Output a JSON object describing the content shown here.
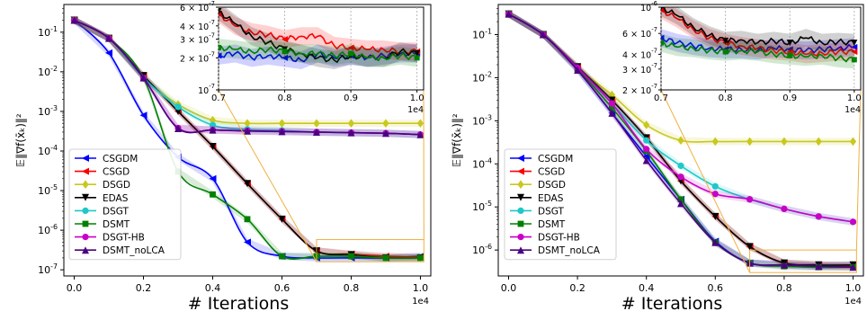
{
  "chart_data": [
    {
      "type": "line",
      "xlabel": "# Iterations",
      "ylabel": "𝔼‖∇f(x̄ₖ)‖²",
      "x_multiplier": "1e4",
      "xlim": [
        -0.03,
        1.03
      ],
      "ylim": [
        7e-08,
        0.5
      ],
      "yscale": "log",
      "x_ticks": [
        "0.0",
        "0.2",
        "0.4",
        "0.6",
        "0.8",
        "1.0"
      ],
      "y_ticks": [
        "10^{-1}",
        "10^{-2}",
        "10^{-3}",
        "10^{-4}",
        "10^{-5}",
        "10^{-6}",
        "10^{-7}"
      ],
      "legend_position": "lower-left",
      "x": [
        0.0,
        0.1,
        0.2,
        0.3,
        0.4,
        0.5,
        0.6,
        0.7,
        0.8,
        0.9,
        1.0
      ],
      "series": [
        {
          "name": "CSGDM",
          "color": "#0000ff",
          "marker": "triangle-left",
          "values": [
            0.2,
            0.03,
            0.0008,
            7e-05,
            2e-05,
            5e-07,
            2.2e-07,
            2e-07,
            2e-07,
            2e-07,
            2.2e-07
          ]
        },
        {
          "name": "CSGD",
          "color": "#ff0000",
          "marker": "triangle-left",
          "values": [
            0.2,
            0.07,
            0.008,
            0.001,
            0.00013,
            1.5e-05,
            1.9e-06,
            3e-07,
            2.5e-07,
            2.2e-07,
            2.1e-07
          ]
        },
        {
          "name": "DSGD",
          "color": "#c8c81e",
          "marker": "diamond",
          "values": [
            0.2,
            0.07,
            0.007,
            0.0015,
            0.0006,
            0.0005,
            0.0005,
            0.0005,
            0.0005,
            0.0005,
            0.0005
          ]
        },
        {
          "name": "EDAS",
          "color": "#000000",
          "marker": "triangle-down",
          "values": [
            0.2,
            0.07,
            0.008,
            0.001,
            0.00013,
            1.5e-05,
            1.9e-06,
            3e-07,
            2.4e-07,
            2e-07,
            2e-07
          ]
        },
        {
          "name": "DSGT",
          "color": "#1ec8c8",
          "marker": "circle",
          "values": [
            0.2,
            0.07,
            0.007,
            0.0013,
            0.00045,
            0.00035,
            0.00033,
            0.0003,
            0.00029,
            0.00028,
            0.00026
          ]
        },
        {
          "name": "DSMT",
          "color": "#008000",
          "marker": "square",
          "values": [
            0.2,
            0.07,
            0.007,
            3e-05,
            8e-06,
            1.9e-06,
            2.2e-07,
            2.2e-07,
            2.2e-07,
            2e-07,
            2e-07
          ]
        },
        {
          "name": "DSGT-HB",
          "color": "#c800c8",
          "marker": "circle",
          "values": [
            0.2,
            0.07,
            0.007,
            0.00038,
            0.00034,
            0.00032,
            0.00031,
            0.0003,
            0.00029,
            0.00028,
            0.00026
          ]
        },
        {
          "name": "DSMT_noLCA",
          "color": "#4b0082",
          "marker": "triangle-up",
          "values": [
            0.2,
            0.07,
            0.007,
            0.00037,
            0.00034,
            0.00032,
            0.00031,
            0.0003,
            0.00029,
            0.00028,
            0.00026
          ]
        }
      ],
      "inset": {
        "xlim": [
          0.7,
          1.01
        ],
        "ylim": [
          1e-07,
          6e-07
        ],
        "x_ticks": [
          "0.7",
          "0.8",
          "0.9",
          "1.0"
        ],
        "x_multiplier": "1e4",
        "y_ticks": [
          "6 × 10^{-7}",
          "4 × 10^{-7}",
          "3 × 10^{-7}",
          "2 × 10^{-7}",
          "10^{-7}"
        ],
        "x": [
          0.7,
          0.725,
          0.75,
          0.775,
          0.8,
          0.825,
          0.85,
          0.875,
          0.9,
          0.925,
          0.95,
          0.975,
          1.0
        ],
        "series": [
          {
            "name": "CSGDM",
            "values": [
              2.1e-07,
              2.2e-07,
              2e-07,
              2.1e-07,
              2e-07,
              1.9e-07,
              2.2e-07,
              2e-07,
              2.1e-07,
              2e-07,
              2.1e-07,
              2.2e-07,
              2.2e-07
            ]
          },
          {
            "name": "CSGD",
            "values": [
              5.2e-07,
              4e-07,
              3.5e-07,
              3.3e-07,
              3e-07,
              3.2e-07,
              3.2e-07,
              2.6e-07,
              2.5e-07,
              2.4e-07,
              2.4e-07,
              2.3e-07,
              2.3e-07
            ]
          },
          {
            "name": "EDAS",
            "values": [
              5.5e-07,
              4.2e-07,
              3.2e-07,
              2.8e-07,
              2.4e-07,
              2.2e-07,
              2e-07,
              1.9e-07,
              2.1e-07,
              2e-07,
              2e-07,
              2.3e-07,
              2.2e-07
            ]
          },
          {
            "name": "DSMT",
            "values": [
              2.5e-07,
              2.4e-07,
              2.3e-07,
              2.4e-07,
              2.3e-07,
              2.2e-07,
              2.2e-07,
              2.1e-07,
              2.2e-07,
              2e-07,
              2e-07,
              2.1e-07,
              2e-07
            ]
          }
        ]
      }
    },
    {
      "type": "line",
      "xlabel": "# Iterations",
      "ylabel": "𝔼‖∇f(x̄ₖ)‖²",
      "x_multiplier": "1e4",
      "xlim": [
        -0.03,
        1.03
      ],
      "ylim": [
        2.5e-07,
        0.5
      ],
      "yscale": "log",
      "x_ticks": [
        "0.0",
        "0.2",
        "0.4",
        "0.6",
        "0.8",
        "1.0"
      ],
      "y_ticks": [
        "10^{-1}",
        "10^{-2}",
        "10^{-3}",
        "10^{-4}",
        "10^{-5}",
        "10^{-6}"
      ],
      "legend_position": "lower-left",
      "x": [
        0.0,
        0.1,
        0.2,
        0.3,
        0.4,
        0.5,
        0.6,
        0.7,
        0.8,
        0.9,
        1.0
      ],
      "series": [
        {
          "name": "CSGDM",
          "color": "#0000ff",
          "marker": "triangle-left",
          "values": [
            0.3,
            0.1,
            0.015,
            0.0015,
            0.00015,
            1.5e-05,
            1.6e-06,
            5e-07,
            4.5e-07,
            4.2e-07,
            4.5e-07
          ]
        },
        {
          "name": "CSGD",
          "color": "#ff0000",
          "marker": "triangle-left",
          "values": [
            0.3,
            0.1,
            0.018,
            0.003,
            0.0004,
            4e-05,
            6e-06,
            1.2e-06,
            5e-07,
            4.5e-07,
            4.2e-07
          ]
        },
        {
          "name": "DSGD",
          "color": "#c8c81e",
          "marker": "diamond",
          "values": [
            0.3,
            0.1,
            0.017,
            0.004,
            0.0008,
            0.00035,
            0.00033,
            0.00033,
            0.00033,
            0.00033,
            0.00033
          ]
        },
        {
          "name": "EDAS",
          "color": "#000000",
          "marker": "triangle-down",
          "values": [
            0.3,
            0.1,
            0.018,
            0.003,
            0.0004,
            4e-05,
            6e-06,
            1.2e-06,
            5e-07,
            4.5e-07,
            4.5e-07
          ]
        },
        {
          "name": "DSGT",
          "color": "#1ec8c8",
          "marker": "circle",
          "values": [
            0.3,
            0.1,
            0.017,
            0.0025,
            0.00035,
            9e-05,
            3e-05,
            1.5e-05,
            9e-06,
            6e-06,
            4.5e-06
          ]
        },
        {
          "name": "DSMT",
          "color": "#008000",
          "marker": "square",
          "values": [
            0.3,
            0.1,
            0.016,
            0.002,
            0.0002,
            1.5e-05,
            1.5e-06,
            5e-07,
            4.2e-07,
            4e-07,
            4e-07
          ]
        },
        {
          "name": "DSGT-HB",
          "color": "#c800c8",
          "marker": "circle",
          "values": [
            0.3,
            0.1,
            0.017,
            0.0025,
            0.00022,
            5e-05,
            2e-05,
            1.5e-05,
            9e-06,
            6e-06,
            4.5e-06
          ]
        },
        {
          "name": "DSMT_noLCA",
          "color": "#4b0082",
          "marker": "triangle-up",
          "values": [
            0.3,
            0.1,
            0.015,
            0.0015,
            0.00012,
            1.2e-05,
            1.5e-06,
            5e-07,
            4.5e-07,
            4.2e-07,
            4e-07
          ]
        }
      ],
      "inset": {
        "xlim": [
          0.7,
          1.01
        ],
        "ylim": [
          2e-07,
          1e-06
        ],
        "x_ticks": [
          "0.7",
          "0.8",
          "0.9",
          "1.0"
        ],
        "x_multiplier": "1e4",
        "y_ticks": [
          "10^{-6}",
          "6 × 10^{-7}",
          "4 × 10^{-7}",
          "3 × 10^{-7}",
          "2 × 10^{-7}"
        ],
        "x": [
          0.7,
          0.725,
          0.75,
          0.775,
          0.8,
          0.825,
          0.85,
          0.875,
          0.9,
          0.925,
          0.95,
          0.975,
          1.0
        ],
        "series": [
          {
            "name": "CSGDM",
            "values": [
              5.5e-07,
              5e-07,
              4.7e-07,
              4.5e-07,
              4.4e-07,
              4.4e-07,
              4.3e-07,
              4.5e-07,
              4.4e-07,
              4.3e-07,
              4.4e-07,
              4.5e-07,
              4.6e-07
            ]
          },
          {
            "name": "CSGD",
            "values": [
              9.5e-07,
              8e-07,
              6.5e-07,
              5.5e-07,
              5e-07,
              4.7e-07,
              4.5e-07,
              4.3e-07,
              4.2e-07,
              4e-07,
              4.1e-07,
              4.2e-07,
              4.2e-07
            ]
          },
          {
            "name": "EDAS",
            "values": [
              1e-06,
              8.5e-07,
              6.8e-07,
              5.8e-07,
              5.2e-07,
              5.3e-07,
              5e-07,
              5.2e-07,
              5e-07,
              5.5e-07,
              5e-07,
              5.1e-07,
              5e-07
            ]
          },
          {
            "name": "DSMT",
            "values": [
              5e-07,
              4.6e-07,
              4.5e-07,
              4.3e-07,
              4.2e-07,
              4.3e-07,
              4.2e-07,
              4e-07,
              3.9e-07,
              3.8e-07,
              3.9e-07,
              3.7e-07,
              3.6e-07
            ]
          }
        ]
      }
    }
  ]
}
